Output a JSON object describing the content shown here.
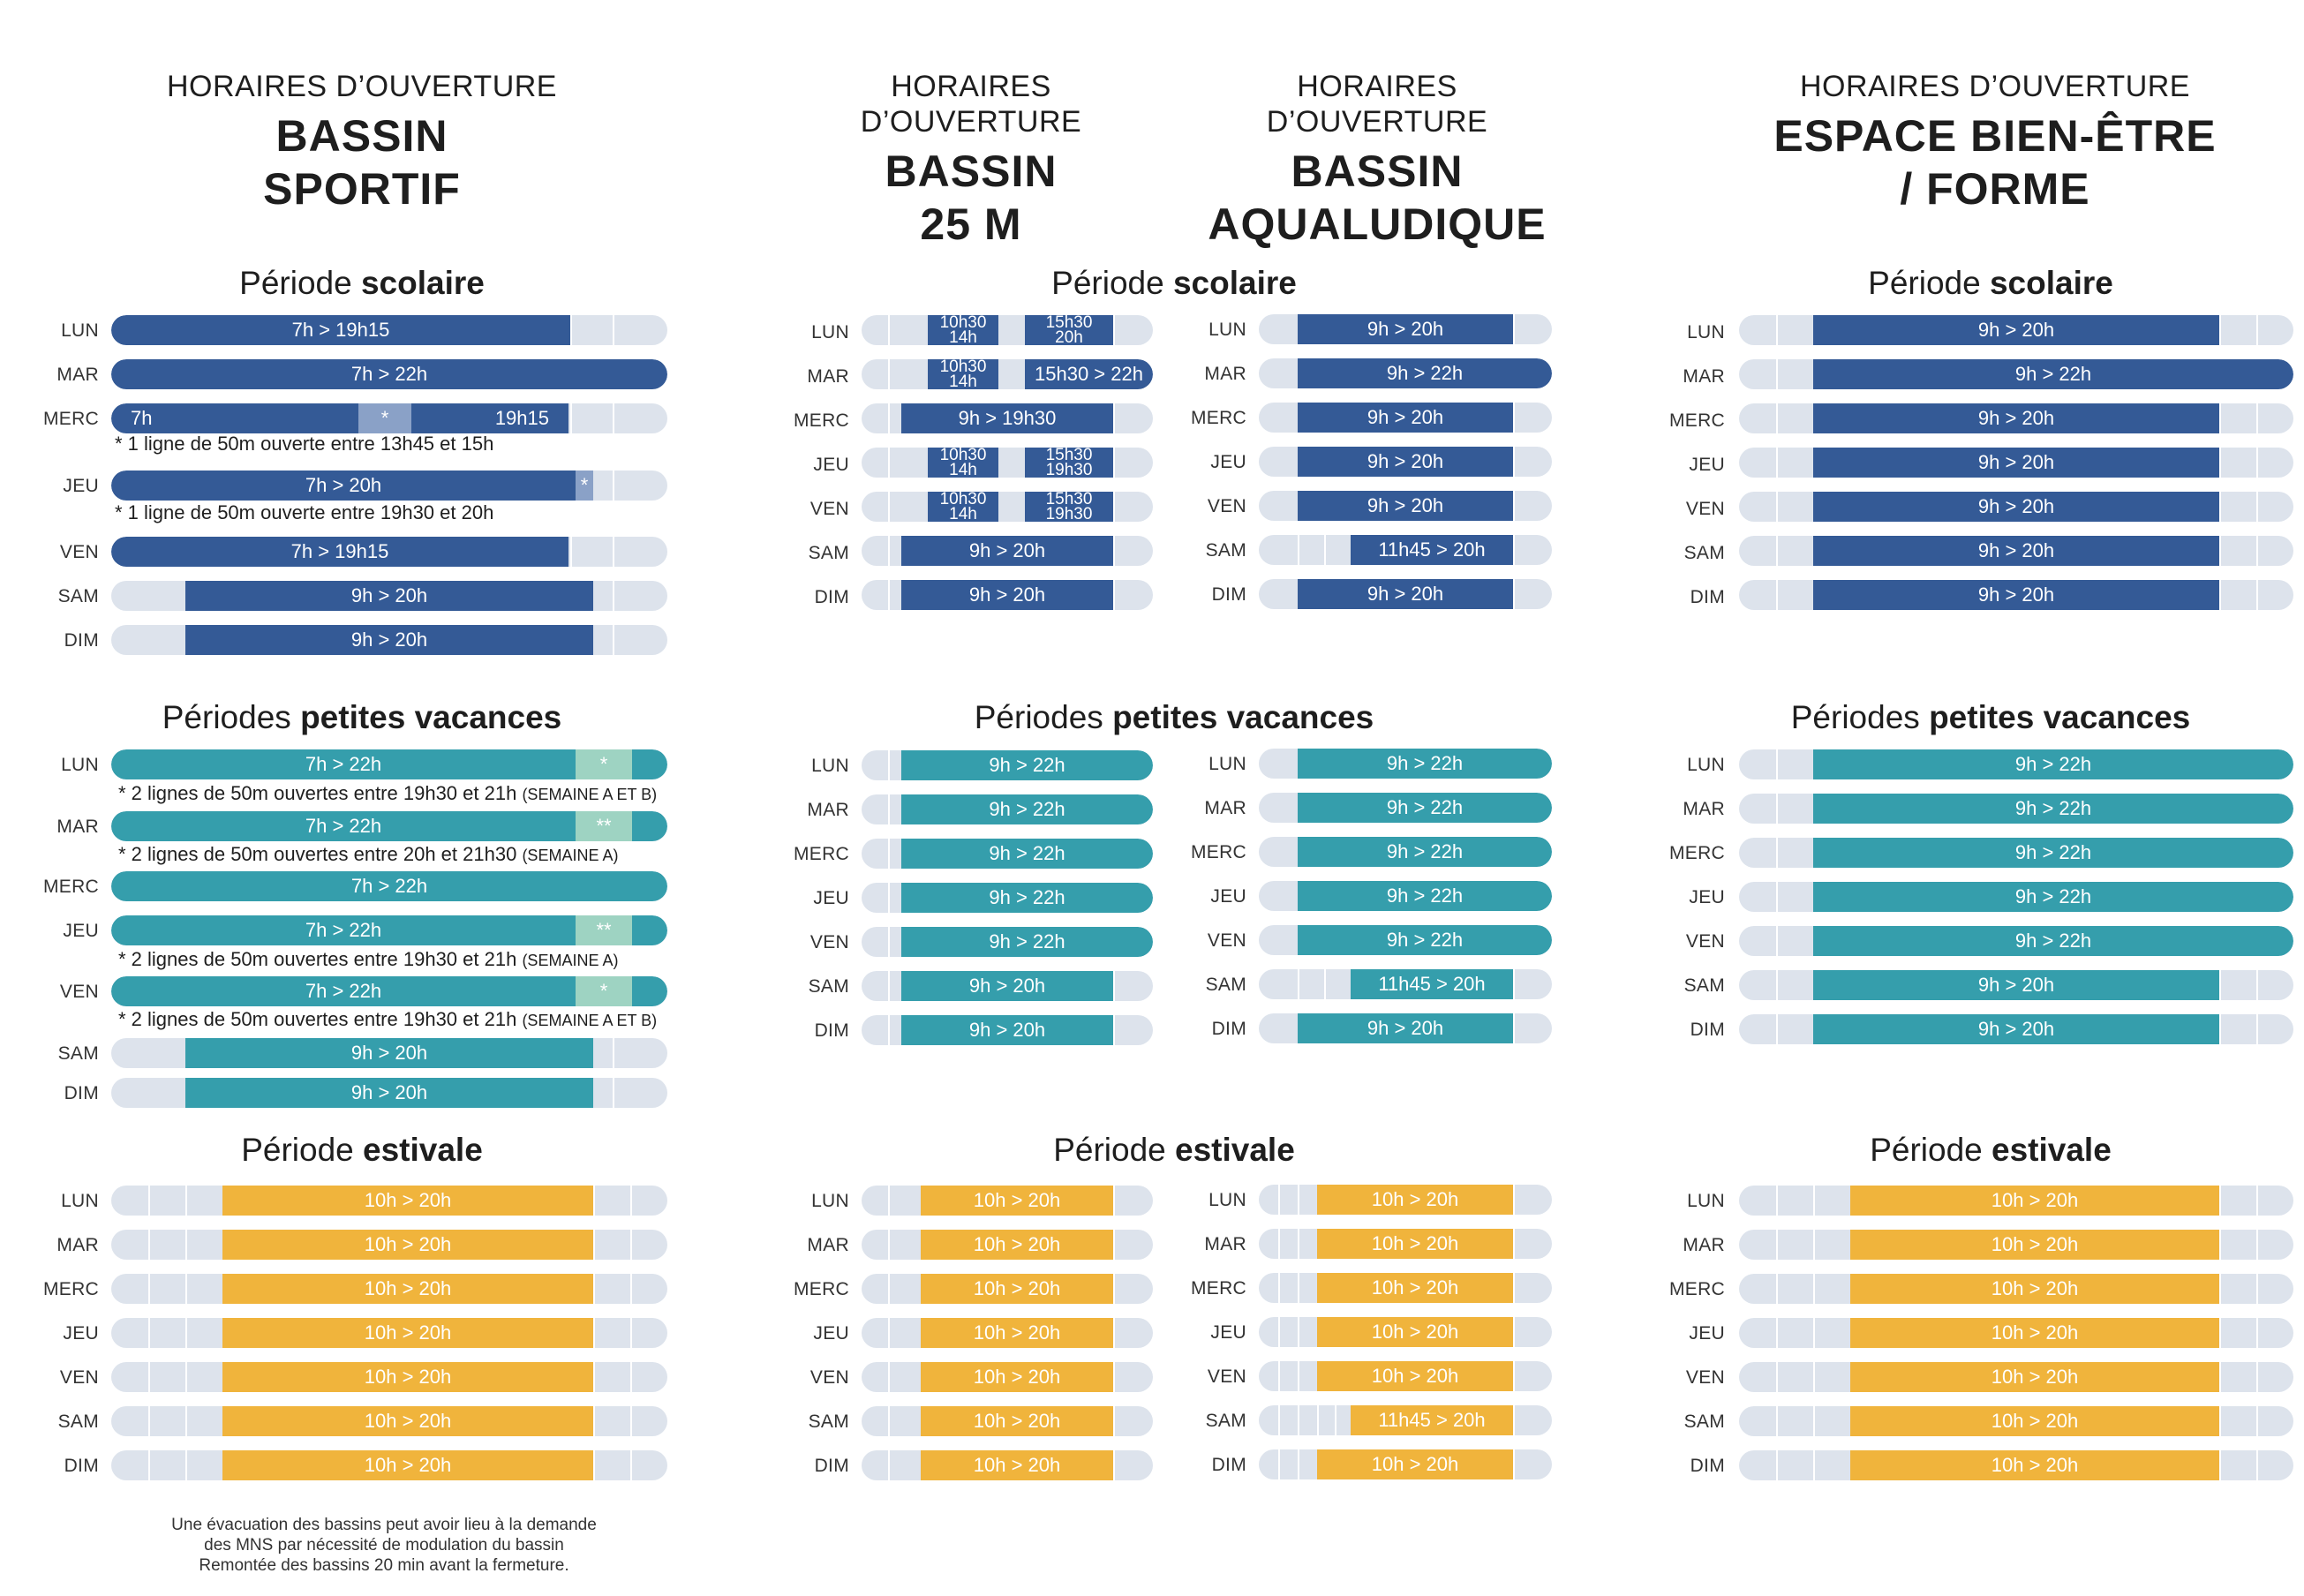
{
  "colors": {
    "blue": "#345a96",
    "teal": "#359eac",
    "orange": "#f0b43c",
    "track": "#dde3ec",
    "light_blue": "#8aa1c7",
    "mint": "#9ed3c2"
  },
  "headers": [
    {
      "pre": "HORAIRES D’OUVERTURE",
      "line1": "BASSIN",
      "line2": "SPORTIF"
    },
    {
      "pre": "HORAIRES D’OUVERTURE",
      "line1": "BASSIN",
      "line2": "25 M"
    },
    {
      "pre": "HORAIRES D’OUVERTURE",
      "line1": "BASSIN",
      "line2": "AQUALUDIQUE"
    },
    {
      "pre": "HORAIRES D’OUVERTURE",
      "line1": "ESPACE BIEN-ÊTRE",
      "line2": "/ FORME"
    }
  ],
  "period_titles": {
    "scolaire": {
      "pre": "Période ",
      "bold": "scolaire"
    },
    "vacances": {
      "pre": "Périodes ",
      "bold": "petites vacances"
    },
    "estivale": {
      "pre": "Période ",
      "bold": "estivale"
    }
  },
  "days": [
    "LUN",
    "MAR",
    "MERC",
    "JEU",
    "VEN",
    "SAM",
    "DIM"
  ],
  "sportif": {
    "scolaire": [
      {
        "day": "LUN",
        "label": "7h > 19h15"
      },
      {
        "day": "MAR",
        "label": "7h > 22h"
      },
      {
        "day": "MERC",
        "start": "7h",
        "mid": "*",
        "end": "19h15"
      },
      {
        "day": "JEU",
        "label": "7h > 20h",
        "mark": "*"
      },
      {
        "day": "VEN",
        "label": "7h > 19h15"
      },
      {
        "day": "SAM",
        "label": "9h > 20h"
      },
      {
        "day": "DIM",
        "label": "9h > 20h"
      }
    ],
    "scolaire_notes": [
      "* 1 ligne de 50m ouverte entre 13h45 et 15h",
      "* 1 ligne de 50m ouverte entre 19h30 et 20h"
    ],
    "vacances": [
      {
        "day": "LUN",
        "label": "7h > 22h",
        "mark": "*"
      },
      {
        "day": "MAR",
        "label": "7h > 22h",
        "mark": "**"
      },
      {
        "day": "MERC",
        "label": "7h > 22h"
      },
      {
        "day": "JEU",
        "label": "7h > 22h",
        "mark": "**"
      },
      {
        "day": "VEN",
        "label": "7h > 22h",
        "mark": "*"
      },
      {
        "day": "SAM",
        "label": "9h > 20h"
      },
      {
        "day": "DIM",
        "label": "9h > 20h"
      }
    ],
    "vacances_notes": [
      {
        "text": "* 2 lignes de 50m ouvertes entre 19h30 et 21h ",
        "small": "(SEMAINE A ET B)"
      },
      {
        "text": "* 2 lignes de 50m ouvertes entre 20h et 21h30 ",
        "small": "(SEMAINE A)"
      },
      {
        "text": "* 2 lignes de 50m ouvertes entre 19h30 et 21h ",
        "small": "(SEMAINE A)"
      },
      {
        "text": "* 2 lignes de 50m ouvertes entre 19h30 et 21h ",
        "small": "(SEMAINE A ET B)"
      }
    ],
    "estivale": [
      "10h > 20h",
      "10h > 20h",
      "10h > 20h",
      "10h > 20h",
      "10h > 20h",
      "10h > 20h",
      "10h > 20h"
    ]
  },
  "bassin25": {
    "scolaire": [
      {
        "day": "LUN",
        "a1": "10h30",
        "a2": "14h",
        "b1": "15h30",
        "b2": "20h"
      },
      {
        "day": "MAR",
        "a1": "10h30",
        "a2": "14h",
        "b": "15h30 >  22h"
      },
      {
        "day": "MERC",
        "label": "9h > 19h30"
      },
      {
        "day": "JEU",
        "a1": "10h30",
        "a2": "14h",
        "b1": "15h30",
        "b2": "19h30"
      },
      {
        "day": "VEN",
        "a1": "10h30",
        "a2": "14h",
        "b1": "15h30",
        "b2": "19h30"
      },
      {
        "day": "SAM",
        "label": "9h > 20h"
      },
      {
        "day": "DIM",
        "label": "9h > 20h"
      }
    ],
    "vacances": [
      "9h > 22h",
      "9h > 22h",
      "9h > 22h",
      "9h > 22h",
      "9h > 22h",
      "9h > 20h",
      "9h > 20h"
    ],
    "estivale": [
      "10h > 20h",
      "10h > 20h",
      "10h > 20h",
      "10h > 20h",
      "10h > 20h",
      "10h > 20h",
      "10h > 20h"
    ]
  },
  "aqualudique": {
    "scolaire": [
      "9h > 20h",
      "9h > 22h",
      "9h > 20h",
      "9h > 20h",
      "9h > 20h",
      "11h45 > 20h",
      "9h > 20h"
    ],
    "vacances": [
      "9h > 22h",
      "9h > 22h",
      "9h > 22h",
      "9h > 22h",
      "9h > 22h",
      "11h45 > 20h",
      "9h > 20h"
    ],
    "estivale": [
      "10h > 20h",
      "10h > 20h",
      "10h > 20h",
      "10h > 20h",
      "10h > 20h",
      "11h45 > 20h",
      "10h > 20h"
    ]
  },
  "bienetre": {
    "scolaire": [
      "9h > 20h",
      "9h > 22h",
      "9h > 20h",
      "9h > 20h",
      "9h > 20h",
      "9h > 20h",
      "9h > 20h"
    ],
    "vacances": [
      "9h > 22h",
      "9h > 22h",
      "9h > 22h",
      "9h > 22h",
      "9h > 22h",
      "9h > 20h",
      "9h > 20h"
    ],
    "estivale": [
      "10h > 20h",
      "10h > 20h",
      "10h > 20h",
      "10h > 20h",
      "10h > 20h",
      "10h > 20h",
      "10h > 20h"
    ]
  },
  "footer": [
    "Une évacuation des bassins peut avoir lieu à la demande",
    "des MNS par nécessité de modulation du bassin",
    "Remontée des bassins 20 min avant la fermeture."
  ]
}
